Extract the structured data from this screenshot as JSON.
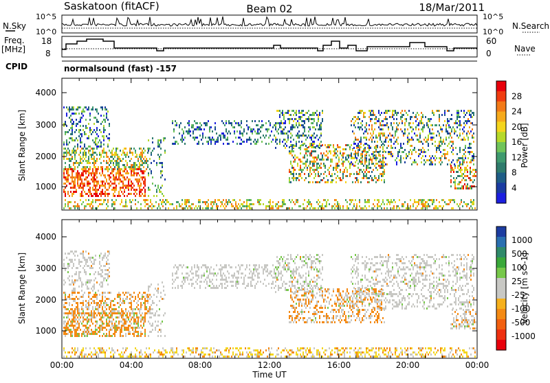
{
  "header": {
    "station": "Saskatoon (fitACF)",
    "beam": "Beam 02",
    "date": "18/Mar/2011"
  },
  "noise_panel": {
    "left_label": "N.Sky",
    "right_label": "N.Search",
    "top_tick": "10^5",
    "bottom_tick": "10^0"
  },
  "freq_panel": {
    "left_label_line1": "Freq.",
    "left_label_line2": "[MHz]",
    "left_ticks": [
      "18",
      "8"
    ],
    "right_ticks": [
      "60",
      "0"
    ],
    "right_label": "Nave"
  },
  "cpid": {
    "label": "CPID",
    "text": "normalsound (fast) -157"
  },
  "power_panel": {
    "ylabel": "Slant Range [km]",
    "yticks": [
      "4000",
      "3000",
      "2000",
      "1000"
    ],
    "colorbar_label": "Power [dB]",
    "colorbar_ticks": [
      "28",
      "24",
      "20",
      "16",
      "12",
      "8",
      "4"
    ],
    "colorbar_colors": [
      "#e8000b",
      "#f03c10",
      "#f37a18",
      "#f6aa1c",
      "#f4d51d",
      "#b6d92a",
      "#70c45a",
      "#3f9a6e",
      "#2f7b6c",
      "#1e5d86",
      "#1a3ca2",
      "#1c1fe0"
    ]
  },
  "velocity_panel": {
    "ylabel": "Slant Range [km]",
    "yticks": [
      "4000",
      "3000",
      "2000",
      "1000"
    ],
    "colorbar_label": "Velocity [m s^-1]",
    "colorbar_ticks": [
      "1000",
      "500",
      "100",
      "25",
      "-25",
      "-100",
      "-500",
      "-1000"
    ],
    "colorbar_colors": [
      "#1c3ca0",
      "#2a6fb0",
      "#2f8a6a",
      "#3aa83a",
      "#77c84a",
      "#c8c8c4",
      "#c8c8c4",
      "#f6b01c",
      "#f48a14",
      "#f26010",
      "#ee3010",
      "#e8000b"
    ]
  },
  "time_axis": {
    "label": "Time UT",
    "ticks": [
      "00:00",
      "04:00",
      "08:00",
      "12:00",
      "16:00",
      "20:00",
      "00:00"
    ]
  }
}
